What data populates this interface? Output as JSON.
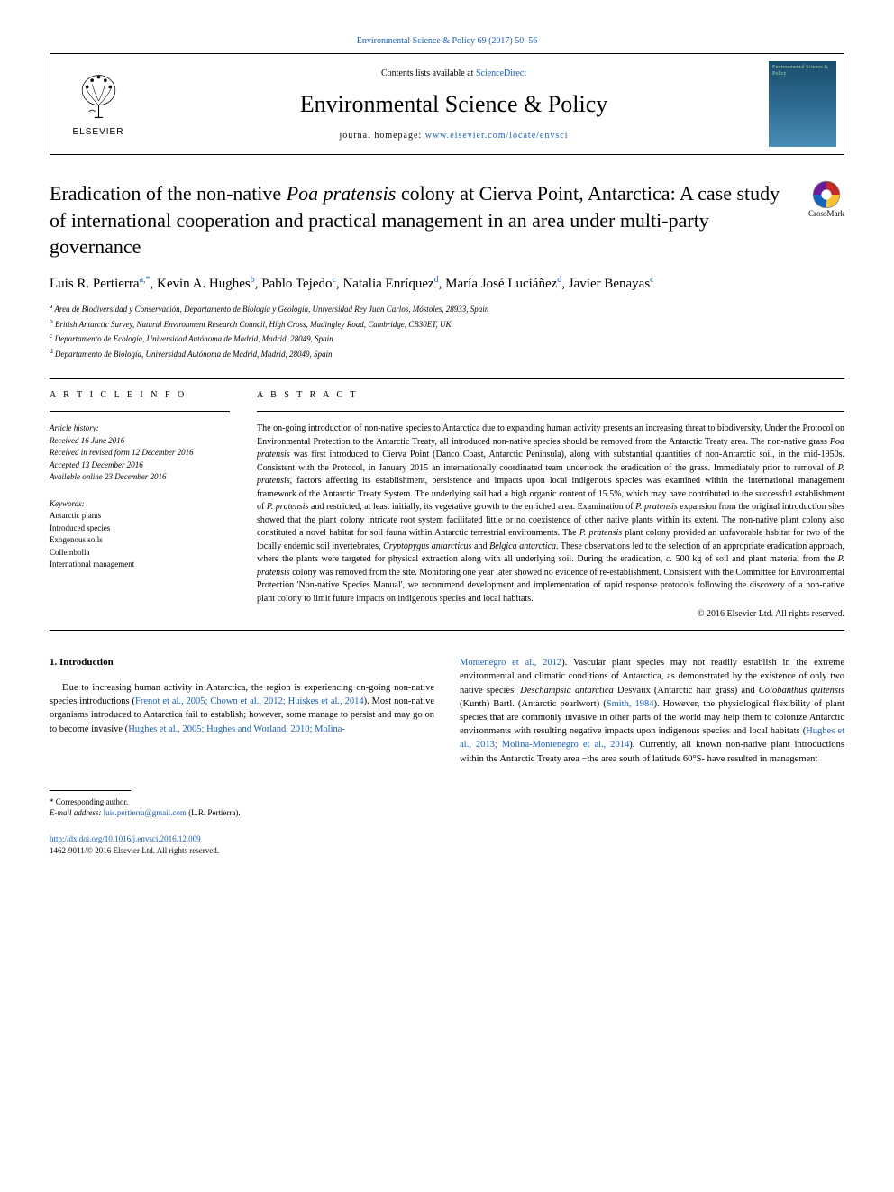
{
  "header": {
    "top_citation": "Environmental Science & Policy 69 (2017) 50–56",
    "contents_prefix": "Contents lists available at ",
    "contents_link": "ScienceDirect",
    "journal_title": "Environmental Science & Policy",
    "homepage_prefix": "journal homepage: ",
    "homepage_link": "www.elsevier.com/locate/envsci",
    "elsevier_label": "ELSEVIER",
    "cover_text": "Environmental Science & Policy"
  },
  "crossmark_label": "CrossMark",
  "article": {
    "title_plain_1": "Eradication of the non-native ",
    "title_em_1": "Poa pratensis",
    "title_plain_2": " colony at Cierva Point, Antarctica: A case study of international cooperation and practical management in an area under multi-party governance",
    "authors_html": "Luis R. Pertierra<sup>a,*</sup>, Kevin A. Hughes<sup>b</sup>, Pablo Tejedo<sup>c</sup>, Natalia Enríquez<sup>d</sup>, María José Luciáñez<sup>d</sup>, Javier Benayas<sup>c</sup>",
    "affiliations": {
      "a": "Area de Biodiversidad y Conservación, Departamento de Biología y Geología, Universidad Rey Juan Carlos, Móstoles, 28933, Spain",
      "b": "British Antarctic Survey, Natural Environment Research Council, High Cross, Madingley Road, Cambridge, CB30ET, UK",
      "c": "Departamento de Ecología, Universidad Autónoma de Madrid, Madrid, 28049, Spain",
      "d": "Departamento de Biología, Universidad Autónoma de Madrid, Madrid, 28049, Spain"
    }
  },
  "info": {
    "heading": "A R T I C L E  I N F O",
    "history_label": "Article history:",
    "received": "Received 16 June 2016",
    "revised": "Received in revised form 12 December 2016",
    "accepted": "Accepted 13 December 2016",
    "online": "Available online 23 December 2016",
    "keywords_label": "Keywords:",
    "keywords": [
      "Antarctic plants",
      "Introduced species",
      "Exogenous soils",
      "Collembolla",
      "International management"
    ]
  },
  "abstract": {
    "heading": "A B S T R A C T",
    "text_parts": [
      {
        "t": "plain",
        "v": "The on-going introduction of non-native species to Antarctica due to expanding human activity presents an increasing threat to biodiversity. Under the Protocol on Environmental Protection to the Antarctic Treaty, all introduced non-native species should be removed from the Antarctic Treaty area. The non-native grass "
      },
      {
        "t": "em",
        "v": "Poa pratensis"
      },
      {
        "t": "plain",
        "v": " was first introduced to Cierva Point (Danco Coast, Antarctic Peninsula), along with substantial quantities of non-Antarctic soil, in the mid-1950s. Consistent with the Protocol, in January 2015 an internationally coordinated team undertook the eradication of the grass. Immediately prior to removal of "
      },
      {
        "t": "em",
        "v": "P. pratensis"
      },
      {
        "t": "plain",
        "v": ", factors affecting its establishment, persistence and impacts upon local indigenous species was examined within the international management framework of the Antarctic Treaty System. The underlying soil had a high organic content of 15.5%, which may have contributed to the successful establishment of "
      },
      {
        "t": "em",
        "v": "P. pratensis"
      },
      {
        "t": "plain",
        "v": " and restricted, at least initially, its vegetative growth to the enriched area. Examination of "
      },
      {
        "t": "em",
        "v": "P. pratensis"
      },
      {
        "t": "plain",
        "v": " expansion from the original introduction sites showed that the plant colony intricate root system facilitated little or no coexistence of other native plants within its extent. The non-native plant colony also constituted a novel habitat for soil fauna within Antarctic terrestrial environments. The "
      },
      {
        "t": "em",
        "v": "P. pratensis"
      },
      {
        "t": "plain",
        "v": " plant colony provided an unfavorable habitat for two of the locally endemic soil invertebrates, "
      },
      {
        "t": "em",
        "v": "Cryptopygus antarcticus"
      },
      {
        "t": "plain",
        "v": " and "
      },
      {
        "t": "em",
        "v": "Belgica antarctica"
      },
      {
        "t": "plain",
        "v": ". These observations led to the selection of an appropriate eradication approach, where the plants were targeted for physical extraction along with all underlying soil. During the eradication, "
      },
      {
        "t": "em",
        "v": "c."
      },
      {
        "t": "plain",
        "v": " 500 kg of soil and plant material from the "
      },
      {
        "t": "em",
        "v": "P. pratensis"
      },
      {
        "t": "plain",
        "v": " colony was removed from the site. Monitoring one year later showed no evidence of re-establishment. Consistent with the Committee for Environmental Protection 'Non-native Species Manual', we recommend development and implementation of rapid response protocols following the discovery of a non-native plant colony to limit future impacts on indigenous species and local habitats."
      }
    ],
    "copyright": "© 2016 Elsevier Ltd. All rights reserved."
  },
  "intro": {
    "heading": "1. Introduction",
    "left_parts": [
      {
        "t": "plain",
        "v": "Due to increasing human activity in Antarctica, the region is experiencing on-going non-native species introductions ("
      },
      {
        "t": "link",
        "v": "Frenot et al., 2005; Chown et al., 2012; Huiskes et al., 2014"
      },
      {
        "t": "plain",
        "v": "). Most non-native organisms introduced to Antarctica fail to establish; however, some manage to persist and may go on to become invasive ("
      },
      {
        "t": "link",
        "v": "Hughes et al., 2005; Hughes and Worland, 2010; Molina-"
      }
    ],
    "right_parts": [
      {
        "t": "link",
        "v": "Montenegro et al., 2012"
      },
      {
        "t": "plain",
        "v": "). Vascular plant species may not readily establish in the extreme environmental and climatic conditions of Antarctica, as demonstrated by the existence of only two native species: "
      },
      {
        "t": "em",
        "v": "Deschampsia antarctica"
      },
      {
        "t": "plain",
        "v": " Desvaux (Antarctic hair grass) and "
      },
      {
        "t": "em",
        "v": "Colobanthus quitensis"
      },
      {
        "t": "plain",
        "v": " (Kunth) Bartl. (Antarctic pearlwort) ("
      },
      {
        "t": "link",
        "v": "Smith, 1984"
      },
      {
        "t": "plain",
        "v": "). However, the physiological flexibility of plant species that are commonly invasive in other parts of the world may help them to colonize Antarctic environments with resulting negative impacts upon indigenous species and local habitats ("
      },
      {
        "t": "link",
        "v": "Hughes et al., 2013; Molina-Montenegro et al., 2014"
      },
      {
        "t": "plain",
        "v": "). Currently, all known non-native plant introductions within the Antarctic Treaty area −the area south of latitude 60°S- have resulted in management"
      }
    ]
  },
  "footnote": {
    "corr_label": "* Corresponding author.",
    "email_label": "E-mail address: ",
    "email": "luis.pertierra@gmail.com",
    "email_suffix": " (L.R. Pertierra)."
  },
  "footer": {
    "doi": "http://dx.doi.org/10.1016/j.envsci.2016.12.009",
    "issn_line": "1462-9011/© 2016 Elsevier Ltd. All rights reserved."
  },
  "colors": {
    "link": "#1a5fb4",
    "text": "#000000"
  }
}
